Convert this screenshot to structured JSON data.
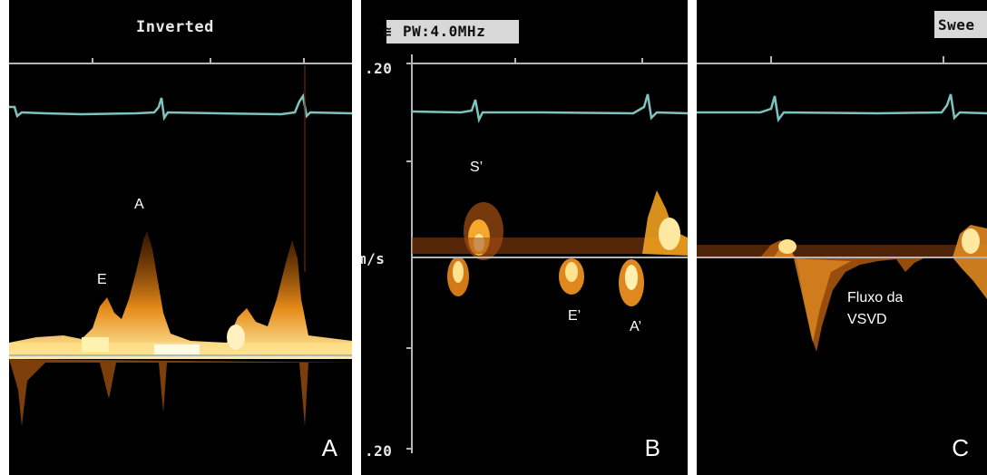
{
  "panel_a": {
    "header": "Inverted",
    "peak_labels": {
      "e": "E",
      "a": "A"
    },
    "corner_label": "A"
  },
  "panel_b": {
    "header_icon": "≅",
    "header": "PW:4.0MHz",
    "scale_top": ".20",
    "scale_bottom": ".20",
    "unit": "m/s",
    "peak_labels": {
      "s": "S’",
      "e": "E’",
      "a": "A’"
    },
    "corner_label": "B"
  },
  "panel_c": {
    "header": "Swee",
    "flow_label_line1": "Fluxo da",
    "flow_label_line2": "VSVD",
    "corner_label": "C"
  },
  "colors": {
    "background": "#000000",
    "ecg": "#7fc3c0",
    "baseline": "#b5b5b5",
    "doppler_core": "#fff3b0",
    "doppler_mid": "#f0a020",
    "doppler_edge": "#8a3c05"
  }
}
